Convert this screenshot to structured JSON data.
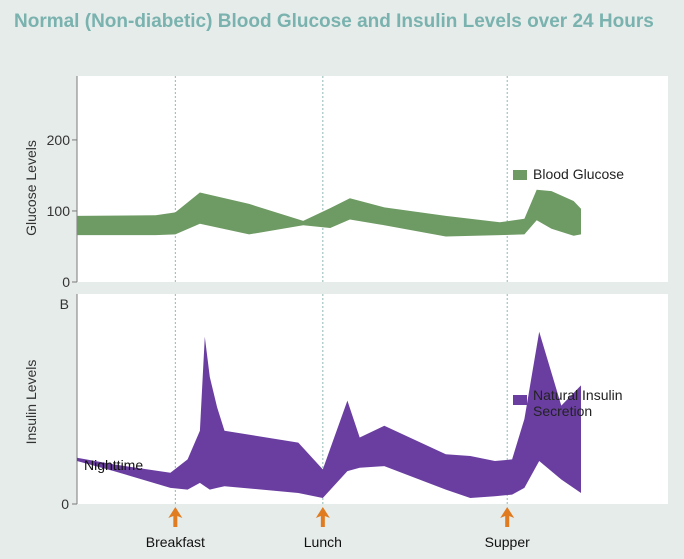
{
  "title": "Normal (Non-diabetic) Blood Glucose and Insulin Levels over 24 Hours",
  "colors": {
    "glucose": "#6e9a63",
    "insulin": "#6a3ea1",
    "arrow": "#e07b1f",
    "title": "#79b2ae",
    "panel": "#ffffff",
    "background": "#e6ecea"
  },
  "chart_data": [
    {
      "type": "area",
      "ylabel": "Glucose Levels",
      "yticks": [
        0,
        100,
        200
      ],
      "ylim": [
        0,
        290
      ],
      "xlim": [
        0,
        24
      ],
      "grid": false,
      "legend_position": "right",
      "series": [
        {
          "name": "Blood Glucose",
          "x": [
            0,
            3.2,
            4.0,
            5.0,
            7.0,
            9.2,
            10.3,
            11.1,
            12.5,
            15.0,
            17.2,
            18.2,
            18.7,
            19.3,
            20.2,
            20.5
          ],
          "upper": [
            93,
            94,
            98,
            126,
            110,
            86,
            104,
            118,
            105,
            93,
            84,
            89,
            130,
            128,
            114,
            103
          ],
          "lower": [
            66,
            66,
            67,
            82,
            67,
            80,
            76,
            88,
            80,
            64,
            66,
            67,
            87,
            75,
            65,
            67
          ]
        }
      ],
      "vlines_x": [
        4.0,
        10.0,
        17.5
      ]
    },
    {
      "type": "area",
      "ylabel": "Insulin Levels",
      "ytick_labels": [
        "0",
        "B"
      ],
      "xlim": [
        0,
        24
      ],
      "grid": false,
      "legend_position": "right",
      "annotation": "Nighttime",
      "series": [
        {
          "name": "Natural Insulin Secretion",
          "x": [
            0,
            1.5,
            3.8,
            4.5,
            5.0,
            5.2,
            5.4,
            5.7,
            6.0,
            9.0,
            10.0,
            11.0,
            11.5,
            12.5,
            15.0,
            16.0,
            17.0,
            17.7,
            18.2,
            18.8,
            19.7,
            20.5
          ],
          "upper": [
            0.24,
            0.2,
            0.15,
            0.23,
            0.4,
            0.96,
            0.72,
            0.54,
            0.4,
            0.33,
            0.17,
            0.58,
            0.36,
            0.43,
            0.26,
            0.25,
            0.22,
            0.23,
            0.47,
            0.99,
            0.55,
            0.67
          ],
          "lower": [
            0.22,
            0.16,
            0.06,
            0.05,
            0.09,
            0.07,
            0.05,
            0.06,
            0.07,
            0.03,
            0.0,
            0.16,
            0.18,
            0.19,
            0.05,
            0.0,
            0.01,
            0.02,
            0.06,
            0.22,
            0.11,
            0.03
          ]
        }
      ],
      "vlines_x": [
        4.0,
        10.0,
        17.5
      ]
    }
  ],
  "meals": [
    {
      "label": "Breakfast",
      "x": 4.0
    },
    {
      "label": "Lunch",
      "x": 10.0
    },
    {
      "label": "Supper",
      "x": 17.5
    }
  ]
}
